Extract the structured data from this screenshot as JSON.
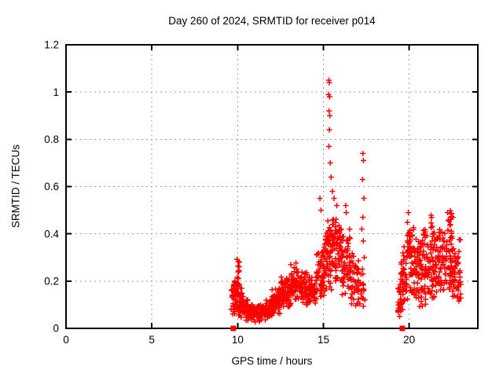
{
  "chart_data": {
    "type": "scatter",
    "title": "Day 260 of 2024, SRMTID for receiver p014",
    "xlabel": "GPS time / hours",
    "ylabel": "SRMTID / TECUs",
    "xlim": [
      0,
      24
    ],
    "ylim": [
      0,
      1.2
    ],
    "xticks": [
      0,
      5,
      10,
      15,
      20
    ],
    "xtick_labels": [
      "0",
      "5",
      "10",
      "15",
      "20"
    ],
    "yticks": [
      0,
      0.2,
      0.4,
      0.6,
      0.8,
      1,
      1.2
    ],
    "ytick_labels": [
      "0",
      "0.2",
      "0.4",
      "0.6",
      "0.8",
      "1",
      "1.2"
    ],
    "grid": true,
    "legend": "none",
    "marker": "plus-cross",
    "marker_color": "#ff0000",
    "grid_color": "#a0a0a0",
    "border_color": "#000000",
    "background_color": "#ffffff",
    "seed": 260,
    "series_description": "SRMTID amplitude vs GPS time; data present 9.6-17.4h and 19.35-23.0h, gap elsewhere",
    "segments": [
      {
        "x0": 9.62,
        "x1": 9.85,
        "y0": 0.05,
        "y1": 0.19,
        "n": 18
      },
      {
        "x0": 9.8,
        "x1": 10.0,
        "y0": 0.05,
        "y1": 0.24,
        "n": 22
      },
      {
        "x0": 9.95,
        "x1": 10.12,
        "y0": 0.07,
        "y1": 0.3,
        "n": 26
      },
      {
        "x0": 10.05,
        "x1": 10.35,
        "y0": 0.04,
        "y1": 0.17,
        "n": 28
      },
      {
        "x0": 10.35,
        "x1": 10.7,
        "y0": 0.03,
        "y1": 0.13,
        "n": 38
      },
      {
        "x0": 10.7,
        "x1": 11.4,
        "y0": 0.025,
        "y1": 0.1,
        "n": 68
      },
      {
        "x0": 11.4,
        "x1": 12.0,
        "y0": 0.035,
        "y1": 0.12,
        "n": 60
      },
      {
        "x0": 12.0,
        "x1": 12.5,
        "y0": 0.06,
        "y1": 0.17,
        "n": 55
      },
      {
        "x0": 12.5,
        "x1": 13.1,
        "y0": 0.09,
        "y1": 0.22,
        "n": 70
      },
      {
        "x0": 13.1,
        "x1": 13.65,
        "y0": 0.12,
        "y1": 0.28,
        "n": 58
      },
      {
        "x0": 13.65,
        "x1": 14.15,
        "y0": 0.1,
        "y1": 0.24,
        "n": 50
      },
      {
        "x0": 14.15,
        "x1": 14.6,
        "y0": 0.1,
        "y1": 0.22,
        "n": 45
      },
      {
        "x0": 14.6,
        "x1": 15.05,
        "y0": 0.12,
        "y1": 0.34,
        "n": 52
      },
      {
        "x0": 15.0,
        "x1": 15.5,
        "y0": 0.15,
        "y1": 0.48,
        "n": 62
      },
      {
        "x0": 15.5,
        "x1": 16.05,
        "y0": 0.2,
        "y1": 0.47,
        "n": 70
      },
      {
        "x0": 16.05,
        "x1": 16.55,
        "y0": 0.14,
        "y1": 0.42,
        "n": 55
      },
      {
        "x0": 16.55,
        "x1": 17.0,
        "y0": 0.08,
        "y1": 0.32,
        "n": 42
      },
      {
        "x0": 17.0,
        "x1": 17.35,
        "y0": 0.09,
        "y1": 0.3,
        "n": 22
      },
      {
        "x0": 19.35,
        "x1": 19.55,
        "y0": 0.03,
        "y1": 0.22,
        "n": 20
      },
      {
        "x0": 19.5,
        "x1": 19.95,
        "y0": 0.07,
        "y1": 0.35,
        "n": 48
      },
      {
        "x0": 19.88,
        "x1": 20.05,
        "y0": 0.25,
        "y1": 0.48,
        "n": 16
      },
      {
        "x0": 20.0,
        "x1": 20.5,
        "y0": 0.12,
        "y1": 0.44,
        "n": 62
      },
      {
        "x0": 20.5,
        "x1": 21.0,
        "y0": 0.08,
        "y1": 0.38,
        "n": 55
      },
      {
        "x0": 20.8,
        "x1": 20.95,
        "y0": 0.34,
        "y1": 0.45,
        "n": 8
      },
      {
        "x0": 21.0,
        "x1": 21.6,
        "y0": 0.12,
        "y1": 0.42,
        "n": 62
      },
      {
        "x0": 21.25,
        "x1": 21.42,
        "y0": 0.4,
        "y1": 0.48,
        "n": 6
      },
      {
        "x0": 21.6,
        "x1": 22.5,
        "y0": 0.15,
        "y1": 0.45,
        "n": 92
      },
      {
        "x0": 22.2,
        "x1": 22.55,
        "y0": 0.42,
        "y1": 0.52,
        "n": 10
      },
      {
        "x0": 22.5,
        "x1": 23.0,
        "y0": 0.1,
        "y1": 0.38,
        "n": 44
      },
      {
        "x0": 22.85,
        "x1": 23.05,
        "y0": 0.1,
        "y1": 0.26,
        "n": 10
      }
    ],
    "outlier_points": [
      [
        14.8,
        0.55
      ],
      [
        14.86,
        0.5
      ],
      [
        15.32,
        1.05
      ],
      [
        15.34,
        1.04
      ],
      [
        15.3,
        0.99
      ],
      [
        15.36,
        0.98
      ],
      [
        15.33,
        0.92
      ],
      [
        15.37,
        0.9
      ],
      [
        15.35,
        0.84
      ],
      [
        15.32,
        0.77
      ],
      [
        15.4,
        0.7
      ],
      [
        15.45,
        0.64
      ],
      [
        15.52,
        0.58
      ],
      [
        15.62,
        0.55
      ],
      [
        15.78,
        0.52
      ],
      [
        16.3,
        0.52
      ],
      [
        16.33,
        0.49
      ],
      [
        17.3,
        0.74
      ],
      [
        17.33,
        0.71
      ],
      [
        17.28,
        0.63
      ],
      [
        17.36,
        0.55
      ],
      [
        17.3,
        0.47
      ],
      [
        17.24,
        0.42
      ],
      [
        17.32,
        0.37
      ],
      [
        17.38,
        0.3
      ],
      [
        17.3,
        0.23
      ],
      [
        17.36,
        0.16
      ],
      [
        17.42,
        0.12
      ],
      [
        19.95,
        0.49
      ]
    ],
    "zero_square_markers": [
      [
        9.75,
        0
      ],
      [
        19.6,
        0
      ]
    ]
  }
}
